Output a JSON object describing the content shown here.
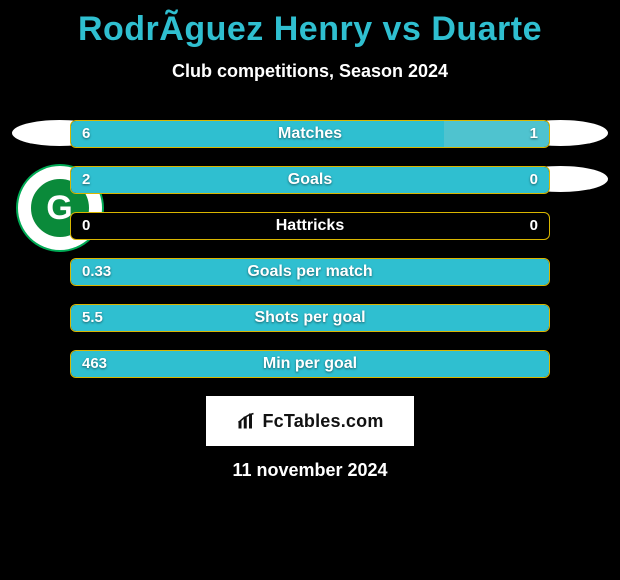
{
  "header": {
    "title": "RodrÃ­guez Henry vs Duarte",
    "subtitle": "Club competitions, Season 2024",
    "title_color": "#2fbfd0"
  },
  "colors": {
    "left_bar": "#2fbfd0",
    "right_bar": "#4fc3cf",
    "bar_border": "#d9b500",
    "background": "#000000",
    "text": "#ffffff"
  },
  "left_team": {
    "badge_letter": "G",
    "badge_fg": "#ffffff",
    "badge_bg": "#0a8a3a"
  },
  "stats": [
    {
      "label": "Matches",
      "left_value": "6",
      "right_value": "1",
      "left_pct": 78,
      "right_pct": 22
    },
    {
      "label": "Goals",
      "left_value": "2",
      "right_value": "0",
      "left_pct": 100,
      "right_pct": 0
    },
    {
      "label": "Hattricks",
      "left_value": "0",
      "right_value": "0",
      "left_pct": 0,
      "right_pct": 0
    },
    {
      "label": "Goals per match",
      "left_value": "0.33",
      "right_value": "",
      "left_pct": 100,
      "right_pct": 0
    },
    {
      "label": "Shots per goal",
      "left_value": "5.5",
      "right_value": "",
      "left_pct": 100,
      "right_pct": 0
    },
    {
      "label": "Min per goal",
      "left_value": "463",
      "right_value": "",
      "left_pct": 100,
      "right_pct": 0
    }
  ],
  "brand": {
    "text": "FcTables.com"
  },
  "footer": {
    "date": "11 november 2024"
  }
}
